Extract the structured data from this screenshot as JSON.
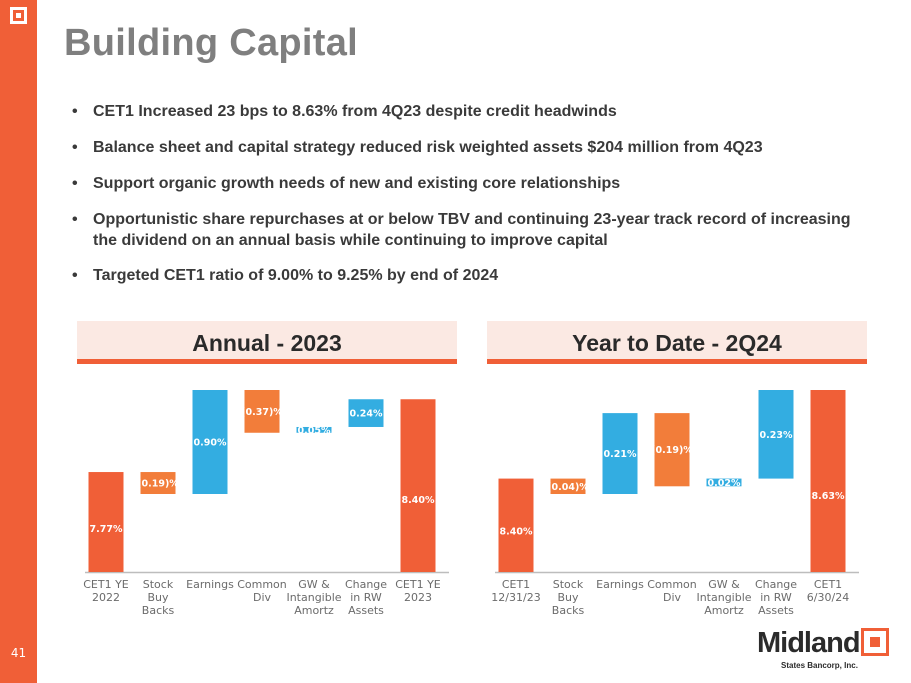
{
  "slide": {
    "title": "Building Capital",
    "page_number": "41",
    "bullets": [
      "CET1 Increased 23 bps to 8.63% from 4Q23 despite credit headwinds",
      "Balance sheet and capital strategy reduced risk weighted assets $204 million from 4Q23",
      "Support organic growth needs of new and existing core relationships",
      "Opportunistic share repurchases at or below TBV and continuing 23-year track record of increasing the dividend on an annual basis while continuing to improve capital",
      "Targeted CET1 ratio of 9.00% to 9.25% by end of 2024"
    ],
    "bullet_char": "•"
  },
  "brand": {
    "name": "Midland",
    "subtitle": "States Bancorp, Inc."
  },
  "colors": {
    "accent": "#f05f37",
    "total": "#f05f37",
    "increase": "#33ade1",
    "decrease": "#f27d3a",
    "header_bg": "#fbe9e3"
  },
  "chart_data": [
    {
      "type": "bar",
      "subtype": "waterfall",
      "title": "Annual - 2023",
      "categories": [
        [
          "CET1 YE",
          "2022"
        ],
        [
          "Stock",
          "Buy",
          "Backs"
        ],
        [
          "Earnings"
        ],
        [
          "Common",
          "Div"
        ],
        [
          "GW &",
          "Intangible",
          "Amortz"
        ],
        [
          "Change",
          "in RW",
          "Assets"
        ],
        [
          "CET1 YE",
          "2023"
        ]
      ],
      "values": [
        7.77,
        -0.19,
        0.9,
        -0.37,
        0.05,
        0.24,
        8.4
      ],
      "kinds": [
        "total",
        "decrease",
        "increase",
        "decrease",
        "increase",
        "increase",
        "total"
      ],
      "labels": [
        "7.77%",
        "(0.19)%",
        "0.90%",
        "(0.37)%",
        "0.05%",
        "0.24%",
        "8.40%"
      ],
      "xlabel": "",
      "ylabel": "",
      "grid": false,
      "legend": "none"
    },
    {
      "type": "bar",
      "subtype": "waterfall",
      "title": "Year to Date - 2Q24",
      "categories": [
        [
          "CET1",
          "12/31/23"
        ],
        [
          "Stock",
          "Buy",
          "Backs"
        ],
        [
          "Earnings"
        ],
        [
          "Common",
          "Div"
        ],
        [
          "GW &",
          "Intangible",
          "Amortz"
        ],
        [
          "Change",
          "in RW",
          "Assets"
        ],
        [
          "CET1",
          "6/30/24"
        ]
      ],
      "values": [
        8.4,
        -0.04,
        0.21,
        -0.19,
        0.02,
        0.23,
        8.63
      ],
      "kinds": [
        "total",
        "decrease",
        "increase",
        "decrease",
        "increase",
        "increase",
        "total"
      ],
      "labels": [
        "8.40%",
        "(0.04)%",
        "0.21%",
        "(0.19)%",
        "0.02%",
        "0.23%",
        "8.63%"
      ],
      "xlabel": "",
      "ylabel": "",
      "grid": false,
      "legend": "none"
    }
  ]
}
